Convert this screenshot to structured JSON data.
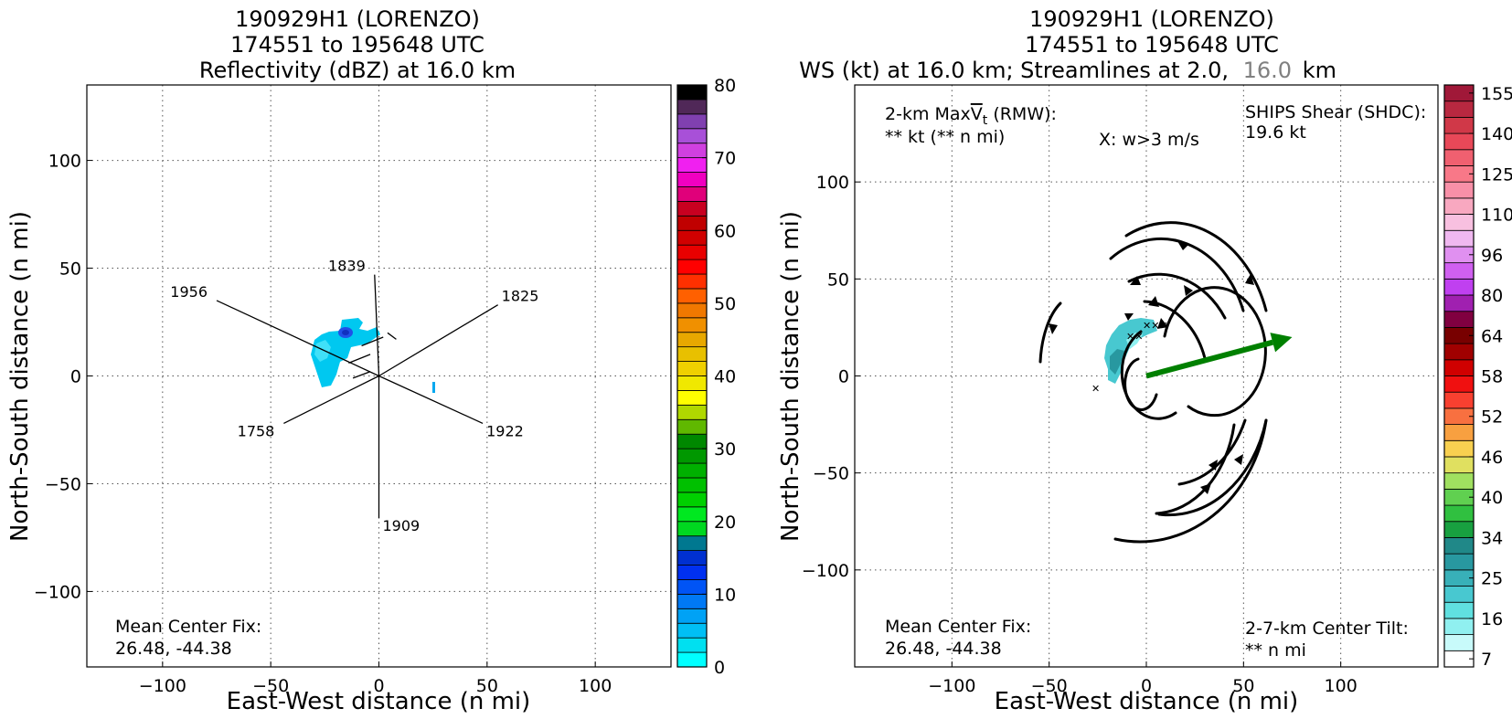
{
  "chart_data": [
    {
      "type": "heatmap",
      "title_line1": "190929H1 (LORENZO)",
      "title_line2": "174551 to 195648 UTC",
      "title_line3": "Reflectivity (dBZ) at 16.0 km",
      "xlabel": "East-West distance (n mi)",
      "ylabel": "North-South distance (n mi)",
      "xlim": [
        -135,
        135
      ],
      "ylim": [
        -135,
        135
      ],
      "xticks": [
        -100,
        -50,
        0,
        50,
        100
      ],
      "yticks": [
        -100,
        -50,
        0,
        50,
        100
      ],
      "grid": true,
      "colorbar": {
        "min": 0,
        "max": 80,
        "step": 2.5,
        "tick_values": [
          0,
          10,
          20,
          30,
          40,
          50,
          60,
          70,
          80
        ],
        "colors": [
          "#00ffff",
          "#00e0f0",
          "#00bff5",
          "#00a2f5",
          "#0079f5",
          "#0054f5",
          "#0030f0",
          "#0030d0",
          "#007890",
          "#00d820",
          "#00e820",
          "#00d000",
          "#00c000",
          "#00b000",
          "#009800",
          "#008800",
          "#60b800",
          "#b0d800",
          "#ffff00",
          "#f0e800",
          "#f0d000",
          "#e8c000",
          "#e8a800",
          "#f09000",
          "#f07800",
          "#ff6000",
          "#ff3000",
          "#ff0000",
          "#e80000",
          "#d00000",
          "#c00000",
          "#c80020",
          "#e0007a",
          "#f000c0",
          "#f020f0",
          "#d040e0",
          "#a850d8",
          "#8040b0",
          "#502858",
          "#000000"
        ]
      },
      "flight_tracks": [
        {
          "label": "1956",
          "from": [
            -75,
            35
          ],
          "to": [
            0,
            0
          ]
        },
        {
          "label": "1922",
          "to": [
            48,
            -22
          ],
          "from": [
            0,
            0
          ]
        },
        {
          "label": "1839",
          "from": [
            -2,
            47
          ],
          "to": [
            0,
            0
          ]
        },
        {
          "label": "1909",
          "to": [
            0,
            -66
          ],
          "from": [
            0,
            0
          ]
        },
        {
          "label": "1825",
          "from": [
            55,
            33
          ],
          "to": [
            0,
            0
          ]
        },
        {
          "label": "1758",
          "to": [
            -44,
            -22
          ],
          "from": [
            0,
            0
          ]
        }
      ],
      "center_fix_label": "Mean Center Fix:",
      "center_fix_value": "26.48, -44.38"
    },
    {
      "type": "heatmap",
      "title_line1": "190929H1 (LORENZO)",
      "title_line2": "174551 to 195648 UTC",
      "title_line3_main": "WS (kt) at 16.0 km; Streamlines at 2.0,",
      "title_line3_alt": "16.0",
      "title_line3_unit": "km",
      "xlabel": "East-West distance (n mi)",
      "ylabel": "North-South distance (n mi)",
      "xlim": [
        -150,
        150
      ],
      "ylim": [
        -150,
        150
      ],
      "xticks": [
        -100,
        -50,
        0,
        50,
        100
      ],
      "yticks": [
        -100,
        -50,
        0,
        50,
        100
      ],
      "grid": true,
      "colorbar": {
        "tick_values": [
          7,
          16,
          25,
          34,
          40,
          46,
          52,
          58,
          64,
          80,
          96,
          110,
          125,
          140,
          155
        ],
        "colors": [
          "#ffffff",
          "#c8fafa",
          "#90f0f0",
          "#60e0e0",
          "#48c8d0",
          "#38b0b8",
          "#2898a0",
          "#208888",
          "#18a040",
          "#30c040",
          "#60d050",
          "#a0e060",
          "#e0e060",
          "#f8d050",
          "#f8a040",
          "#f87040",
          "#f84030",
          "#f01010",
          "#d00000",
          "#a00000",
          "#780000",
          "#800040",
          "#a020b0",
          "#c040f0",
          "#d060f0",
          "#e090f0",
          "#f0b8f0",
          "#f8c0e0",
          "#f8a8c0",
          "#f890a8",
          "#f87888",
          "#f06070",
          "#e84858",
          "#d03848",
          "#b82840",
          "#a01838"
        ]
      },
      "annotation_rmw_line1": "2-km Max",
      "annotation_rmw_symbol": "V",
      "annotation_rmw_sub": "t",
      "annotation_rmw_tail": " (RMW):",
      "annotation_rmw_line2": "** kt (** n mi)",
      "annotation_updraft": "X: w>3 m/s",
      "shear_label": "SHIPS Shear (SHDC):",
      "shear_value": "19.6 kt",
      "shear_color": "#008000",
      "shear_vector": {
        "from": [
          0,
          0
        ],
        "to": [
          75,
          20
        ]
      },
      "tilt_label": "2-7-km Center Tilt:",
      "tilt_value": "** n mi",
      "tilt_color": "#ff0000",
      "center_fix_label": "Mean Center Fix:",
      "center_fix_value": "26.48, -44.38"
    }
  ]
}
